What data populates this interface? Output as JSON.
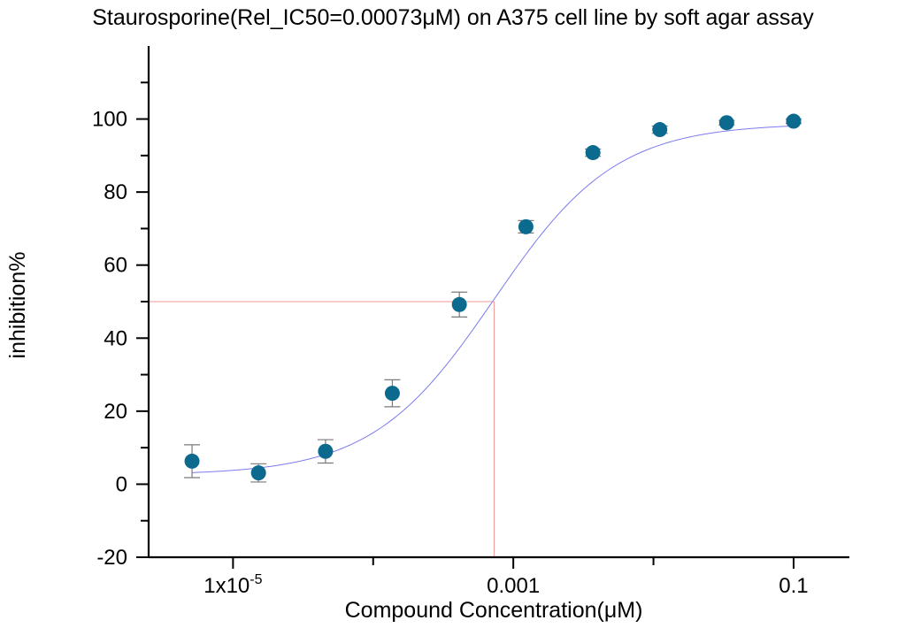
{
  "chart_data": {
    "type": "scatter",
    "title": "Staurosporine(Rel_IC50=0.00073μM) on A375 cell line by soft agar assay",
    "xlabel": "Compound Concentration(μM)",
    "ylabel": "inhibition%",
    "x_scale": "log",
    "xlim": [
      2.5e-06,
      0.25
    ],
    "ylim": [
      -20,
      120
    ],
    "x_ticks": [
      {
        "value": 1e-05,
        "label": "1x10",
        "superscript": "-5"
      },
      {
        "value": 0.001,
        "label": "0.001",
        "superscript": ""
      },
      {
        "value": 0.1,
        "label": "0.1",
        "superscript": ""
      }
    ],
    "x_minor_ticks": [
      0.0001,
      0.01
    ],
    "y_ticks": [
      -20,
      0,
      20,
      40,
      60,
      80,
      100
    ],
    "y_minor_ticks": [
      -10,
      10,
      30,
      50,
      70,
      90,
      110
    ],
    "series": [
      {
        "x": [
          5.1e-06,
          1.52e-05,
          4.57e-05,
          0.000137,
          0.000412,
          0.00123,
          0.0037,
          0.0111,
          0.0333,
          0.1
        ],
        "y": [
          6.3,
          3.1,
          9.0,
          24.9,
          49.2,
          70.5,
          90.8,
          97.1,
          99.0,
          99.4
        ],
        "error": [
          4.5,
          2.5,
          3.2,
          3.7,
          3.4,
          1.7,
          1.0,
          1.0,
          0.6,
          0.6
        ]
      }
    ],
    "fit": {
      "type": "sigmoid",
      "ic50": 0.00073,
      "bottom": 2.5,
      "top": 98.8,
      "hill": 1.0
    },
    "reference_lines": {
      "y": 50,
      "x": 0.00073
    },
    "colors": {
      "points": "#0d6a8f",
      "fit": "#7b7bf0",
      "reference": "#f29a9a",
      "error_bars": "#7a7a7a"
    }
  }
}
